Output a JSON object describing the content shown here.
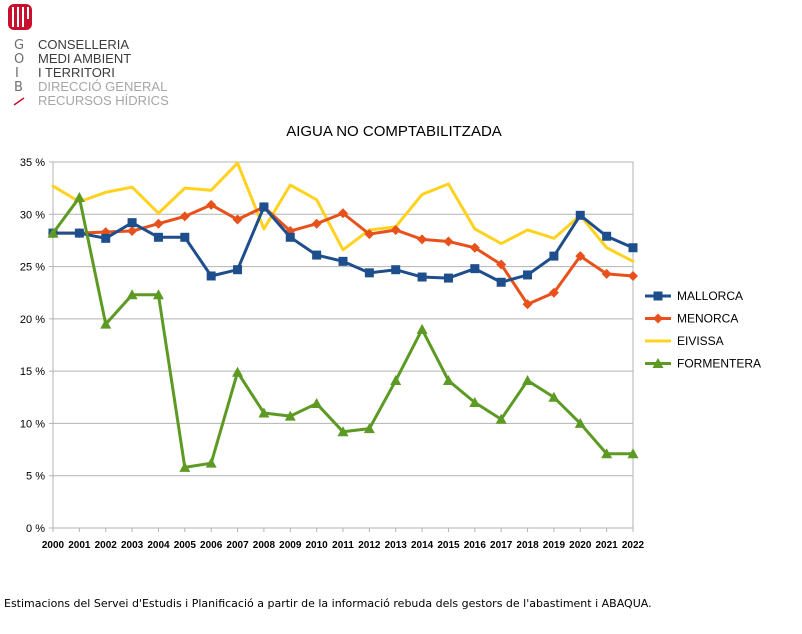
{
  "logo": {
    "letters": [
      "G",
      "O",
      "I",
      "B"
    ],
    "lines": [
      "CONSELLERIA",
      "MEDI AMBIENT",
      "I TERRITORI",
      "DIRECCIÓ GENERAL",
      "RECURSOS HÍDRICS"
    ],
    "colors": {
      "brand_red": "#c8102e",
      "dark_text": "#3c3c3c",
      "light_text": "#a6a6a6"
    }
  },
  "chart_data": {
    "type": "line",
    "title": "AIGUA NO COMPTABILITZADA",
    "xlabel": "",
    "ylabel": "",
    "ylim": [
      0,
      35
    ],
    "y_ticks": [
      0,
      5,
      10,
      15,
      20,
      25,
      30,
      35
    ],
    "y_tick_labels": [
      "0 %",
      "5 %",
      "10 %",
      "15 %",
      "20 %",
      "25 %",
      "30 %",
      "35 %"
    ],
    "grid": true,
    "legend_position": "right",
    "categories": [
      "2000",
      "2001",
      "2002",
      "2003",
      "2004",
      "2005",
      "2006",
      "2007",
      "2008",
      "2009",
      "2010",
      "2011",
      "2012",
      "2013",
      "2014",
      "2015",
      "2016",
      "2017",
      "2018",
      "2019",
      "2020",
      "2021",
      "2022"
    ],
    "series": [
      {
        "name": "MALLORCA",
        "color": "#1f4e8c",
        "marker": "square",
        "values": [
          28.2,
          28.2,
          27.7,
          29.2,
          27.8,
          27.8,
          24.1,
          24.7,
          30.7,
          27.8,
          26.1,
          25.5,
          24.4,
          24.7,
          24.0,
          23.9,
          24.8,
          23.5,
          24.2,
          26.0,
          29.9,
          27.9,
          26.8
        ]
      },
      {
        "name": "MENORCA",
        "color": "#e8511c",
        "marker": "diamond",
        "values": [
          28.2,
          28.2,
          28.3,
          28.4,
          29.1,
          29.8,
          30.9,
          29.5,
          30.7,
          28.4,
          29.1,
          30.1,
          28.1,
          28.5,
          27.6,
          27.4,
          26.8,
          25.2,
          21.4,
          22.5,
          26.0,
          24.3,
          24.1
        ]
      },
      {
        "name": "EIVISSA",
        "color": "#ffd21f",
        "marker": "none",
        "values": [
          32.7,
          31.2,
          32.1,
          32.6,
          30.1,
          32.5,
          32.3,
          34.9,
          28.6,
          32.8,
          31.4,
          26.6,
          28.5,
          28.8,
          31.9,
          32.9,
          28.6,
          27.2,
          28.5,
          27.7,
          29.9,
          26.8,
          25.5
        ]
      },
      {
        "name": "FORMENTERA",
        "color": "#5c9a24",
        "marker": "triangle",
        "values": [
          28.2,
          31.6,
          19.5,
          22.3,
          22.3,
          5.8,
          6.2,
          14.9,
          11.0,
          10.7,
          11.9,
          9.2,
          9.5,
          14.1,
          19.0,
          14.1,
          12.0,
          10.4,
          14.1,
          12.5,
          10.0,
          7.1,
          7.1
        ]
      }
    ]
  },
  "footer": {
    "source_note": "Estimacions del Servei d'Estudis i Planificació a partir de la informació rebuda dels gestors de l'abastiment i ABAQUA."
  }
}
